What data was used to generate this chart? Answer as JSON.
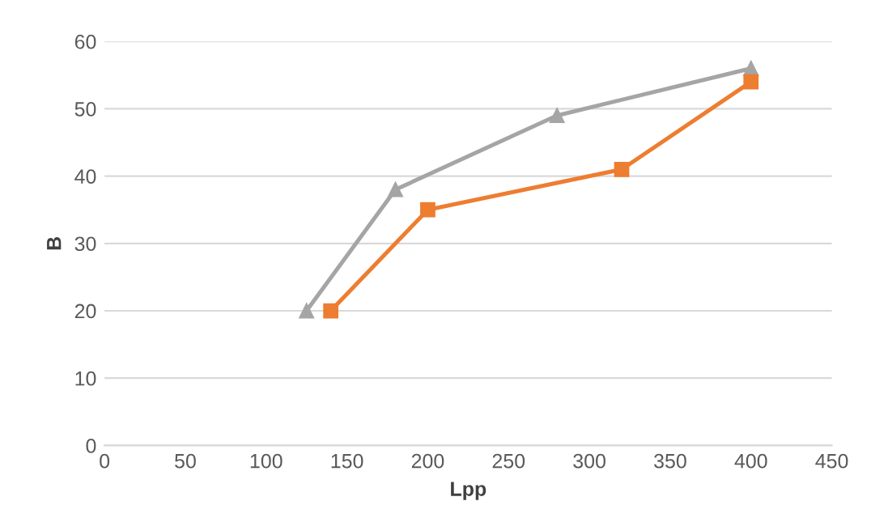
{
  "chart_data": {
    "type": "line",
    "xlabel": "Lpp",
    "ylabel": "B",
    "series": [
      {
        "color": "#a5a5a5",
        "marker": "triangle",
        "x": [
          125,
          180,
          280,
          400
        ],
        "values": [
          20,
          38,
          49,
          56
        ]
      },
      {
        "color": "#ed7d31",
        "marker": "square",
        "x": [
          140,
          200,
          320,
          400
        ],
        "values": [
          20,
          35,
          41,
          54
        ]
      }
    ],
    "xlim": [
      0,
      450
    ],
    "xticks": [
      0,
      50,
      100,
      150,
      200,
      250,
      300,
      350,
      400,
      450
    ],
    "ylim": [
      0,
      60
    ],
    "yticks": [
      0,
      10,
      20,
      30,
      40,
      50,
      60
    ],
    "grid": "y",
    "line_style": "solid"
  }
}
